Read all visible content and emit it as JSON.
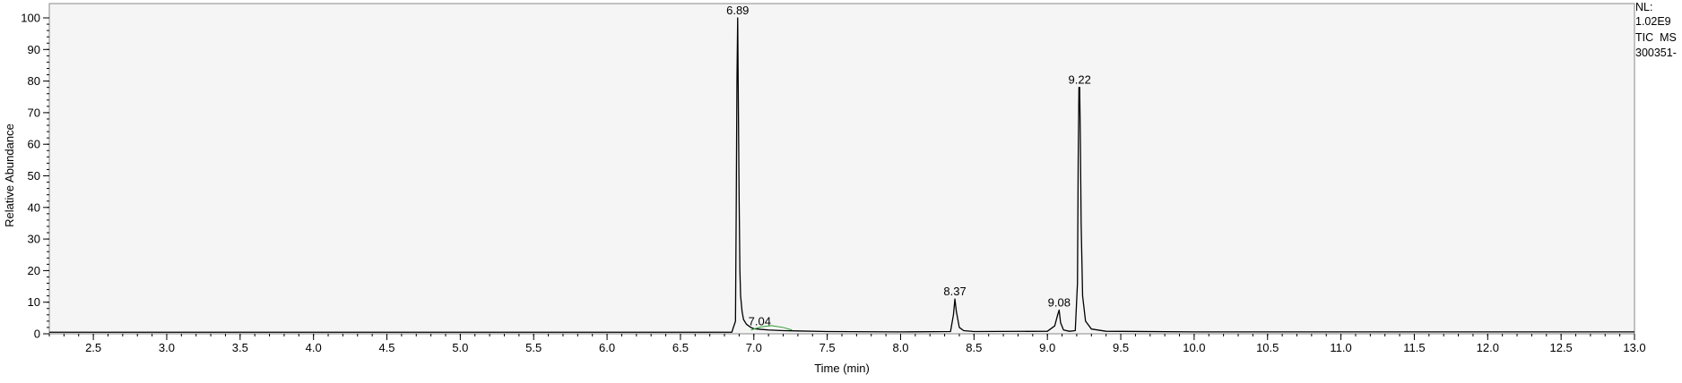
{
  "chart_data": {
    "type": "line",
    "xlabel": "Time (min)",
    "ylabel": "Relative Abundance",
    "xlim": [
      2.2,
      13.0
    ],
    "ylim": [
      0,
      100
    ],
    "x_ticks": [
      "2.5",
      "3.0",
      "3.5",
      "4.0",
      "4.5",
      "5.0",
      "5.5",
      "6.0",
      "6.5",
      "7.0",
      "7.5",
      "8.0",
      "8.5",
      "9.0",
      "9.5",
      "10.0",
      "10.5",
      "11.0",
      "11.5",
      "12.0",
      "12.5",
      "13.0"
    ],
    "y_ticks": [
      "0",
      "10",
      "20",
      "30",
      "40",
      "50",
      "60",
      "70",
      "80",
      "90",
      "100"
    ],
    "grid": false,
    "series": [
      {
        "x": [
          2.2,
          6.0,
          6.85,
          6.875,
          6.88,
          6.885,
          6.89,
          6.895,
          6.9,
          6.905,
          6.91,
          6.92,
          6.93,
          6.95,
          6.98,
          7.0,
          7.05,
          7.1,
          7.2,
          7.5,
          8.0,
          8.34,
          8.36,
          8.37,
          8.38,
          8.4,
          8.43,
          8.5,
          9.0,
          9.05,
          9.07,
          9.08,
          9.09,
          9.11,
          9.15,
          9.19,
          9.205,
          9.21,
          9.215,
          9.22,
          9.225,
          9.23,
          9.24,
          9.26,
          9.3,
          9.4,
          10.0,
          11.0,
          12.0,
          13.0
        ],
        "y": [
          0.5,
          0.5,
          0.5,
          4,
          39,
          80,
          100,
          70,
          42,
          20,
          12,
          7,
          4.5,
          3,
          2,
          1.6,
          1.4,
          1.2,
          1,
          0.7,
          0.6,
          0.7,
          6,
          11,
          7,
          2,
          1,
          0.7,
          0.8,
          2.5,
          6,
          7.5,
          3.5,
          1.2,
          0.8,
          1,
          16,
          55,
          78,
          78,
          60,
          35,
          12,
          4,
          1.5,
          0.8,
          0.6,
          0.6,
          0.6,
          0.6
        ]
      }
    ],
    "peak_labels": [
      {
        "x": 6.89,
        "y": 100,
        "text": "6.89"
      },
      {
        "x": 7.04,
        "y": 1.6,
        "text": "7.04"
      },
      {
        "x": 8.37,
        "y": 11,
        "text": "8.37"
      },
      {
        "x": 9.08,
        "y": 7.5,
        "text": "9.08"
      },
      {
        "x": 9.22,
        "y": 78,
        "text": "9.22"
      }
    ],
    "minor_curve_color": "#2e9a2e",
    "line_color": "#000000",
    "plot_background": "#f5f5f5"
  },
  "header_info": [
    "NL:",
    "1.02E9",
    "TIC  MS",
    "300351-"
  ]
}
